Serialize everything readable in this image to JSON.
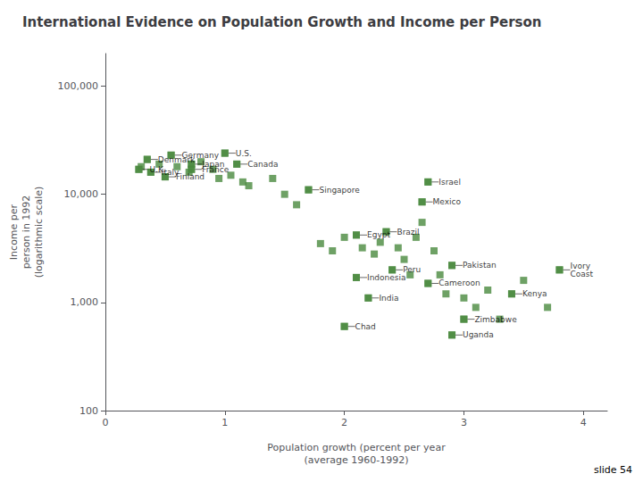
{
  "chart_data": {
    "type": "scatter",
    "title": "International Evidence on Population Growth and Income per Person",
    "xlabel": "Population growth (percent per year\n(average 1960-1992)",
    "ylabel": "Income per\nperson in 1992\n(logarithmic scale)",
    "log": "y",
    "grid": false,
    "color": "#4a8a3f",
    "marker": "square",
    "xlim": [
      0,
      4.2
    ],
    "ylim": [
      100,
      200000
    ],
    "xticks": [
      0,
      1,
      2,
      3,
      4
    ],
    "yticks": [
      100,
      {
        "value": 1000,
        "label": "1,000"
      },
      {
        "value": 10000,
        "label": "10,000"
      },
      {
        "value": 100000,
        "label": "100,000"
      }
    ],
    "x": [
      0.55,
      0.35,
      1.0,
      1.1,
      0.28,
      0.38,
      0.5,
      0.72,
      0.72,
      1.7,
      2.7,
      2.65,
      2.1,
      2.35,
      2.9,
      2.1,
      2.4,
      2.7,
      2.2,
      2.0,
      3.0,
      2.9,
      3.4,
      3.8,
      0.3,
      0.45,
      0.6,
      0.7,
      0.8,
      0.9,
      0.95,
      1.05,
      1.15,
      1.2,
      1.4,
      1.5,
      1.6,
      1.8,
      1.9,
      2.0,
      2.15,
      2.25,
      2.3,
      2.45,
      2.5,
      2.55,
      2.6,
      2.65,
      2.75,
      2.8,
      2.85,
      3.0,
      3.1,
      3.2,
      3.3,
      3.5,
      3.7
    ],
    "values": [
      23000,
      21000,
      24000,
      19000,
      17000,
      16000,
      14500,
      19000,
      17000,
      11000,
      13000,
      8500,
      4200,
      4500,
      2200,
      1700,
      2000,
      1500,
      1100,
      600,
      700,
      500,
      1200,
      2000,
      18000,
      19000,
      18000,
      16000,
      20000,
      17000,
      14000,
      15000,
      13000,
      12000,
      14000,
      10000,
      8000,
      3500,
      3000,
      4000,
      3200,
      2800,
      3600,
      3200,
      2500,
      1800,
      4000,
      5500,
      3000,
      1800,
      1200,
      1100,
      900,
      1300,
      700,
      1600,
      900
    ],
    "annotations": [
      {
        "text": "Germany",
        "x": 0.55,
        "y": 23000
      },
      {
        "text": "Denmark",
        "x": 0.35,
        "y": 21000
      },
      {
        "text": "U.S.",
        "x": 1.0,
        "y": 24000
      },
      {
        "text": "Canada",
        "x": 1.1,
        "y": 19000
      },
      {
        "text": "U.K.",
        "x": 0.28,
        "y": 17000
      },
      {
        "text": "Italy",
        "x": 0.38,
        "y": 16000
      },
      {
        "text": "Finland",
        "x": 0.5,
        "y": 14500
      },
      {
        "text": "Japan",
        "x": 0.72,
        "y": 19000
      },
      {
        "text": "France",
        "x": 0.72,
        "y": 17000
      },
      {
        "text": "Singapore",
        "x": 1.7,
        "y": 11000
      },
      {
        "text": "Israel",
        "x": 2.7,
        "y": 13000
      },
      {
        "text": "Mexico",
        "x": 2.65,
        "y": 8500
      },
      {
        "text": "Egypt",
        "x": 2.1,
        "y": 4200
      },
      {
        "text": "Brazil",
        "x": 2.35,
        "y": 4500
      },
      {
        "text": "Pakistan",
        "x": 2.9,
        "y": 2200
      },
      {
        "text": "Indonesia",
        "x": 2.1,
        "y": 1700
      },
      {
        "text": "Peru",
        "x": 2.4,
        "y": 2000
      },
      {
        "text": "Cameroon",
        "x": 2.7,
        "y": 1500
      },
      {
        "text": "India",
        "x": 2.2,
        "y": 1100
      },
      {
        "text": "Chad",
        "x": 2.0,
        "y": 600
      },
      {
        "text": "Zimbabwe",
        "x": 3.0,
        "y": 700
      },
      {
        "text": "Uganda",
        "x": 2.9,
        "y": 500
      },
      {
        "text": "Kenya",
        "x": 3.4,
        "y": 1200
      },
      {
        "text": "Ivory\nCoast",
        "x": 3.8,
        "y": 2000
      },
      {
        "text": "slide 54"
      }
    ]
  }
}
